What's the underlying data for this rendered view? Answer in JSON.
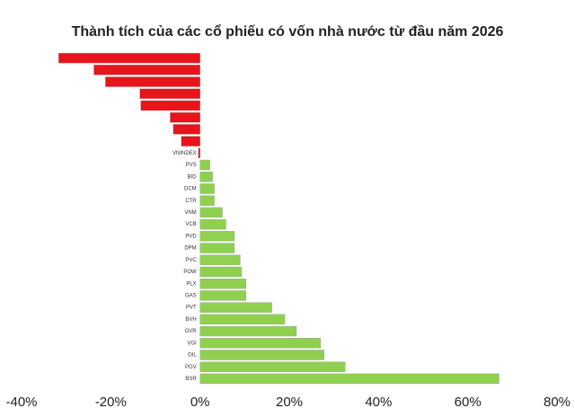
{
  "chart_data": {
    "type": "hbar",
    "title": "Thành tích của các cổ phiếu có vốn nhà nước từ đầu năm 2026",
    "categories": [
      null,
      null,
      null,
      null,
      null,
      null,
      null,
      null,
      "VNINDEX",
      "PVS",
      "BID",
      "DCM",
      "CTR",
      "VNM",
      "VCB",
      "PVD",
      "DPM",
      "PVC",
      "POW",
      "PLX",
      "GAS",
      "PVT",
      "BVH",
      "GVR",
      "VGI",
      "OIL",
      "PGV",
      "BSR"
    ],
    "values": [
      -31.7,
      -23.8,
      -21.2,
      -13.5,
      -13.3,
      -6.7,
      -6,
      -4.2,
      -0.4,
      2.2,
      2.8,
      3.2,
      3.2,
      5,
      5.8,
      7.7,
      7.7,
      9,
      9.3,
      10.3,
      10.3,
      16.1,
      19,
      21.6,
      27,
      27.8,
      32.5,
      67
    ],
    "positive_color": "#8fd14f",
    "negative_color": "#e8141b",
    "xlim": [
      -40,
      80
    ],
    "xticks": [
      {
        "value": -40,
        "label": "-40%"
      },
      {
        "value": -20,
        "label": "-20%"
      },
      {
        "value": 0,
        "label": "0%"
      },
      {
        "value": 20,
        "label": "20%"
      },
      {
        "value": 40,
        "label": "40%"
      },
      {
        "value": 60,
        "label": "60%"
      },
      {
        "value": 80,
        "label": "80%"
      }
    ],
    "grid": false
  }
}
